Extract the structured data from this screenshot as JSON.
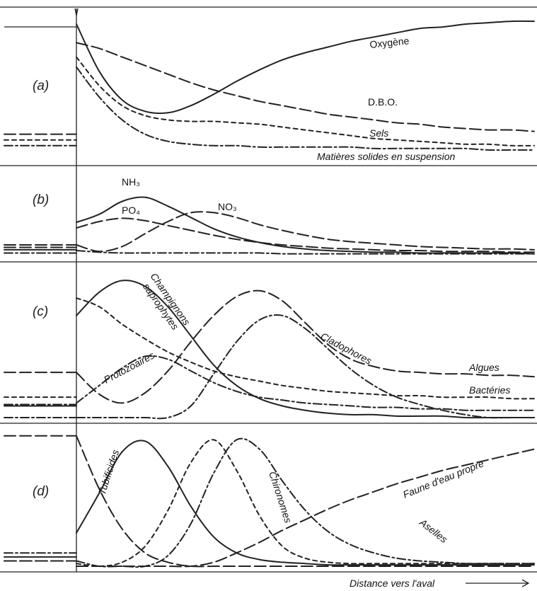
{
  "chart_data": {
    "type": "line",
    "xlabel": "Distance vers l'aval",
    "x": [
      0,
      0.05,
      0.1,
      0.15,
      0.2,
      0.25,
      0.3,
      0.35,
      0.4,
      0.45,
      0.5,
      0.55,
      0.6,
      0.65,
      0.7,
      0.75,
      0.8,
      0.85,
      0.9,
      0.95,
      1.0
    ],
    "panels": [
      {
        "id": "a",
        "label": "(a)",
        "series": [
          {
            "name": "Oxygène",
            "dash": "solid",
            "upstream": 0.95,
            "values": [
              0.95,
              0.62,
              0.42,
              0.34,
              0.33,
              0.38,
              0.46,
              0.55,
              0.63,
              0.7,
              0.75,
              0.79,
              0.83,
              0.86,
              0.89,
              0.92,
              0.93,
              0.95,
              0.96,
              0.97,
              0.97
            ]
          },
          {
            "name": "D.B.O.",
            "dash": "long",
            "upstream": 0.18,
            "values": [
              0.82,
              0.78,
              0.72,
              0.66,
              0.6,
              0.54,
              0.49,
              0.45,
              0.41,
              0.38,
              0.35,
              0.32,
              0.3,
              0.28,
              0.26,
              0.25,
              0.23,
              0.22,
              0.21,
              0.21,
              0.2
            ]
          },
          {
            "name": "Sels",
            "dash": "short",
            "upstream": 0.14,
            "values": [
              0.72,
              0.52,
              0.38,
              0.31,
              0.28,
              0.27,
              0.27,
              0.26,
              0.25,
              0.23,
              0.21,
              0.19,
              0.17,
              0.15,
              0.14,
              0.13,
              0.12,
              0.11,
              0.11,
              0.1,
              0.1
            ]
          },
          {
            "name": "Matières solides en suspension",
            "dash": "dashdot",
            "upstream": 0.1,
            "values": [
              0.65,
              0.44,
              0.28,
              0.18,
              0.13,
              0.11,
              0.1,
              0.1,
              0.09,
              0.09,
              0.09,
              0.09,
              0.09,
              0.08,
              0.08,
              0.08,
              0.08,
              0.08,
              0.07,
              0.07,
              0.07
            ]
          }
        ]
      },
      {
        "id": "b",
        "label": "(b)",
        "series": [
          {
            "name": "NH₃",
            "dash": "solid",
            "upstream": 0.08,
            "values": [
              0.42,
              0.52,
              0.68,
              0.73,
              0.62,
              0.48,
              0.34,
              0.24,
              0.17,
              0.12,
              0.09,
              0.07,
              0.06,
              0.05,
              0.05,
              0.04,
              0.04,
              0.04,
              0.04,
              0.04,
              0.03
            ]
          },
          {
            "name": "NO₃",
            "dash": "long",
            "upstream": 0.14,
            "values": [
              0.14,
              0.06,
              0.12,
              0.28,
              0.43,
              0.54,
              0.54,
              0.48,
              0.39,
              0.32,
              0.26,
              0.21,
              0.18,
              0.16,
              0.14,
              0.12,
              0.11,
              0.1,
              0.09,
              0.09,
              0.08
            ]
          },
          {
            "name": "PO₄",
            "dash": "long",
            "upstream": 0.11,
            "values": [
              0.35,
              0.43,
              0.47,
              0.44,
              0.38,
              0.32,
              0.26,
              0.21,
              0.17,
              0.14,
              0.12,
              0.1,
              0.09,
              0.08,
              0.07,
              0.07,
              0.06,
              0.06,
              0.06,
              0.05,
              0.05
            ]
          },
          {
            "name": "",
            "dash": "dashdot",
            "upstream": 0.04,
            "values": [
              0.07,
              0.05,
              0.04,
              0.04,
              0.04,
              0.04,
              0.04,
              0.04,
              0.04,
              0.03,
              0.03,
              0.03,
              0.03,
              0.03,
              0.03,
              0.03,
              0.03,
              0.03,
              0.03,
              0.03,
              0.03
            ]
          }
        ]
      },
      {
        "id": "c",
        "label": "(c)",
        "series": [
          {
            "name": "Champignons saprophytes",
            "dash": "solid",
            "upstream": 0.08,
            "values": [
              0.7,
              0.86,
              0.94,
              0.9,
              0.76,
              0.56,
              0.36,
              0.22,
              0.13,
              0.08,
              0.05,
              0.03,
              0.02,
              0.02,
              0.01,
              0.01,
              0.01,
              0.0,
              0.0,
              0.0,
              0.0
            ]
          },
          {
            "name": "Bactéries",
            "dash": "short",
            "upstream": 0.14,
            "values": [
              0.82,
              0.76,
              0.64,
              0.54,
              0.45,
              0.38,
              0.32,
              0.28,
              0.25,
              0.22,
              0.2,
              0.18,
              0.17,
              0.16,
              0.15,
              0.15,
              0.14,
              0.14,
              0.14,
              0.13,
              0.13
            ]
          },
          {
            "name": "Protozoaires",
            "dash": "dashdot",
            "upstream": 0.09,
            "values": [
              0.1,
              0.22,
              0.34,
              0.42,
              0.4,
              0.32,
              0.24,
              0.18,
              0.14,
              0.12,
              0.1,
              0.09,
              0.08,
              0.07,
              0.07,
              0.06,
              0.06,
              0.05,
              0.05,
              0.05,
              0.05
            ]
          },
          {
            "name": "Algues",
            "dash": "long",
            "upstream": 0.31,
            "values": [
              0.31,
              0.16,
              0.1,
              0.17,
              0.32,
              0.52,
              0.7,
              0.83,
              0.87,
              0.8,
              0.65,
              0.5,
              0.4,
              0.35,
              0.32,
              0.31,
              0.3,
              0.3,
              0.29,
              0.29,
              0.28
            ]
          },
          {
            "name": "Cladophores",
            "dash": "dashdot",
            "upstream": 0.0,
            "values": [
              0.0,
              0.0,
              0.0,
              0.0,
              0.0,
              0.08,
              0.3,
              0.52,
              0.67,
              0.7,
              0.61,
              0.47,
              0.33,
              0.22,
              0.14,
              0.09,
              0.05,
              0.02,
              0.0,
              0.0,
              0.0
            ]
          }
        ]
      },
      {
        "id": "d",
        "label": "(d)",
        "series": [
          {
            "name": "Tubificides",
            "dash": "solid",
            "upstream": 0.07,
            "values": [
              0.25,
              0.55,
              0.86,
              0.94,
              0.75,
              0.45,
              0.22,
              0.1,
              0.05,
              0.03,
              0.02,
              0.01,
              0.01,
              0.01,
              0.01,
              0.01,
              0.01,
              0.01,
              0.01,
              0.01,
              0.01
            ]
          },
          {
            "name": "",
            "dash": "long",
            "upstream": 0.98,
            "values": [
              0.98,
              0.58,
              0.28,
              0.1,
              0.03,
              0.0,
              0.0,
              0.0,
              0.0,
              0.0,
              0.0,
              0.0,
              0.0,
              0.0,
              0.0,
              0.0,
              0.0,
              0.0,
              0.0,
              0.0,
              0.0
            ]
          },
          {
            "name": "Chironomes",
            "dash": "short",
            "upstream": 0.04,
            "values": [
              0.02,
              0.0,
              0.03,
              0.15,
              0.42,
              0.78,
              0.95,
              0.72,
              0.38,
              0.15,
              0.06,
              0.03,
              0.02,
              0.02,
              0.02,
              0.02,
              0.02,
              0.02,
              0.02,
              0.02,
              0.02
            ]
          },
          {
            "name": "Aselles",
            "dash": "dashdot",
            "upstream": 0.1,
            "values": [
              0.04,
              0.0,
              0.0,
              0.0,
              0.08,
              0.32,
              0.7,
              0.95,
              0.88,
              0.64,
              0.42,
              0.26,
              0.16,
              0.1,
              0.06,
              0.04,
              0.03,
              0.02,
              0.02,
              0.02,
              0.02
            ]
          },
          {
            "name": "Faune d'eau propre",
            "dash": "long",
            "upstream": 0.04,
            "values": [
              0.0,
              0.0,
              0.0,
              0.0,
              0.0,
              0.0,
              0.03,
              0.1,
              0.18,
              0.27,
              0.35,
              0.43,
              0.5,
              0.56,
              0.62,
              0.67,
              0.72,
              0.76,
              0.8,
              0.84,
              0.88
            ]
          }
        ]
      }
    ]
  }
}
